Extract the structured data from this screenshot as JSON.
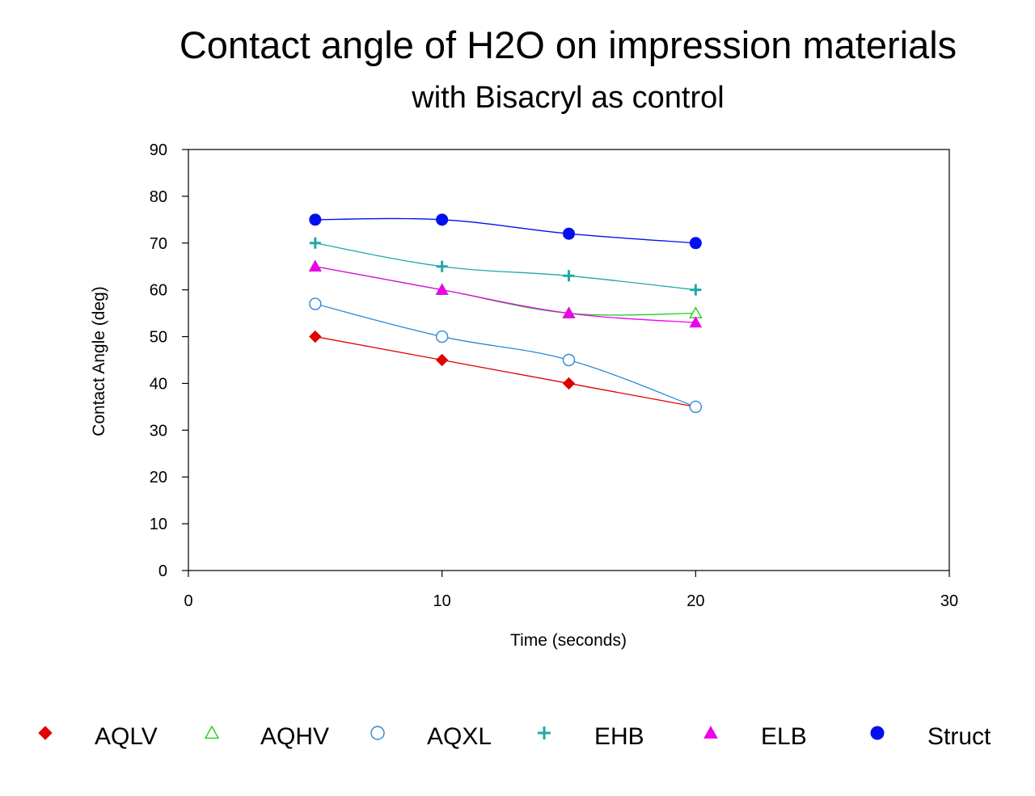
{
  "chart_data": {
    "type": "line",
    "title": "Contact angle of H2O on impression materials",
    "subtitle": "with Bisacryl as control",
    "xlabel": "Time  (seconds)",
    "ylabel": "Contact  Angle  (deg)",
    "xlim": [
      0,
      30
    ],
    "ylim": [
      0,
      90
    ],
    "xticks": [
      "0",
      "10",
      "20",
      "30"
    ],
    "yticks": [
      "0",
      "10",
      "20",
      "30",
      "40",
      "50",
      "60",
      "70",
      "80",
      "90"
    ],
    "grid": false,
    "legend_position": "bottom",
    "x": [
      5,
      10,
      15,
      20
    ],
    "series": [
      {
        "name": "AQLV",
        "values": [
          50,
          45,
          40,
          35
        ],
        "color": "#e00000",
        "marker": "diamond-filled"
      },
      {
        "name": "AQHV",
        "values": [
          65,
          60,
          55,
          55
        ],
        "color": "#22cc22",
        "marker": "triangle-open"
      },
      {
        "name": "AQXL",
        "values": [
          57,
          50,
          45,
          35
        ],
        "color": "#2a8ad8",
        "marker": "circle-open"
      },
      {
        "name": "EHB",
        "values": [
          70,
          65,
          63,
          60
        ],
        "color": "#1fa8a8",
        "marker": "plus"
      },
      {
        "name": "ELB",
        "values": [
          65,
          60,
          55,
          53
        ],
        "color": "#ee00ee",
        "marker": "triangle-filled"
      },
      {
        "name": "Struct",
        "values": [
          75,
          75,
          72,
          70
        ],
        "color": "#0010ee",
        "marker": "circle-filled"
      }
    ]
  }
}
